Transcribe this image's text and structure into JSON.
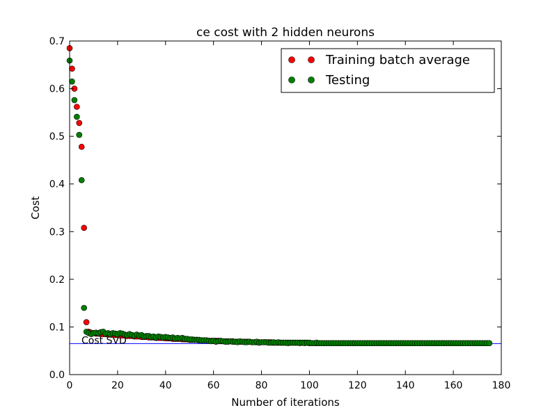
{
  "chart_data": {
    "type": "scatter",
    "title": "ce cost with 2 hidden neurons",
    "xlabel": "Number of iterations",
    "ylabel": "Cost",
    "xlim": [
      0,
      180
    ],
    "ylim": [
      0.0,
      0.7
    ],
    "xticks": [
      0,
      20,
      40,
      60,
      80,
      100,
      120,
      140,
      160,
      180
    ],
    "yticks": [
      0.0,
      0.1,
      0.2,
      0.3,
      0.4,
      0.5,
      0.6,
      0.7
    ],
    "ytick_labels": [
      "0.0",
      "0.1",
      "0.2",
      "0.3",
      "0.4",
      "0.5",
      "0.6",
      "0.7"
    ],
    "grid": false,
    "legend_position": "top-right",
    "colors": {
      "training": "#ff0000",
      "testing": "#008000",
      "svd_line": "#0000ff"
    },
    "series": [
      {
        "name": "Training batch average",
        "x": [
          0,
          1,
          2,
          3,
          4,
          5,
          6,
          7,
          8,
          9,
          10,
          11,
          12,
          13,
          14,
          15,
          16,
          17,
          18,
          19,
          20,
          21,
          22,
          23,
          24,
          25,
          26,
          27,
          28,
          29,
          30,
          31,
          32,
          33,
          34,
          35,
          36,
          37,
          38,
          39,
          40,
          41,
          42,
          43,
          44,
          45,
          46,
          47,
          48,
          49,
          50,
          51,
          52,
          53,
          54,
          55,
          56,
          57,
          58,
          59,
          60,
          61,
          62,
          63,
          64,
          65,
          66,
          67,
          68,
          69,
          70,
          71,
          72,
          73,
          74,
          75,
          76,
          77,
          78,
          79,
          80,
          81,
          82,
          83,
          84,
          85,
          86,
          87,
          88,
          89,
          90,
          91,
          92,
          93,
          94,
          95,
          96,
          97,
          98,
          99,
          100,
          101,
          102,
          103,
          104,
          105,
          106,
          107,
          108,
          109,
          110,
          111,
          112,
          113,
          114,
          115,
          116,
          117,
          118,
          119,
          120,
          121,
          122,
          123,
          124,
          125,
          126,
          127,
          128,
          129,
          130,
          131,
          132,
          133,
          134,
          135,
          136,
          137,
          138,
          139,
          140,
          141,
          142,
          143,
          144,
          145,
          146,
          147,
          148,
          149,
          150,
          151,
          152,
          153,
          154,
          155,
          156,
          157,
          158,
          159,
          160,
          161,
          162,
          163,
          164,
          165,
          166,
          167,
          168,
          169,
          170,
          171,
          172,
          173,
          174,
          175
        ],
        "y": [
          0.685,
          0.642,
          0.6,
          0.562,
          0.528,
          0.478,
          0.308,
          0.11,
          0.09,
          0.088,
          0.087,
          0.086,
          0.086,
          0.085,
          0.085,
          0.085,
          0.084,
          0.084,
          0.083,
          0.083,
          0.083,
          0.082,
          0.082,
          0.082,
          0.081,
          0.081,
          0.081,
          0.08,
          0.08,
          0.08,
          0.079,
          0.079,
          0.079,
          0.078,
          0.078,
          0.078,
          0.077,
          0.077,
          0.077,
          0.077,
          0.076,
          0.076,
          0.076,
          0.075,
          0.075,
          0.075,
          0.075,
          0.074,
          0.074,
          0.074,
          0.073,
          0.073,
          0.073,
          0.073,
          0.072,
          0.072,
          0.072,
          0.072,
          0.071,
          0.071,
          0.071,
          0.071,
          0.071,
          0.07,
          0.07,
          0.07,
          0.07,
          0.07,
          0.07,
          0.069,
          0.069,
          0.069,
          0.069,
          0.069,
          0.069,
          0.069,
          0.068,
          0.068,
          0.068,
          0.068,
          0.068,
          0.068,
          0.068,
          0.068,
          0.068,
          0.067,
          0.067,
          0.067,
          0.067,
          0.067,
          0.067,
          0.067,
          0.067,
          0.067,
          0.067,
          0.067,
          0.067,
          0.067,
          0.067,
          0.067,
          0.066,
          0.066,
          0.066,
          0.066,
          0.066,
          0.066,
          0.066,
          0.066,
          0.066,
          0.066,
          0.066,
          0.066,
          0.066,
          0.066,
          0.066,
          0.066,
          0.066,
          0.066,
          0.066,
          0.066,
          0.066,
          0.066,
          0.066,
          0.066,
          0.066,
          0.066,
          0.066,
          0.066,
          0.066,
          0.066,
          0.066,
          0.066,
          0.066,
          0.066,
          0.066,
          0.066,
          0.066,
          0.066,
          0.066,
          0.066,
          0.066,
          0.066,
          0.066,
          0.066,
          0.066,
          0.066,
          0.066,
          0.066,
          0.066,
          0.066,
          0.066,
          0.066,
          0.066,
          0.066,
          0.066,
          0.066,
          0.066,
          0.066,
          0.066,
          0.066,
          0.066,
          0.066,
          0.066,
          0.066,
          0.066,
          0.066,
          0.066,
          0.066,
          0.066,
          0.066,
          0.066,
          0.066,
          0.066,
          0.066,
          0.066,
          0.066
        ]
      },
      {
        "name": "Testing",
        "x": [
          0,
          1,
          2,
          3,
          4,
          5,
          6,
          7,
          8,
          9,
          10,
          11,
          12,
          13,
          14,
          15,
          16,
          17,
          18,
          19,
          20,
          21,
          22,
          23,
          24,
          25,
          26,
          27,
          28,
          29,
          30,
          31,
          32,
          33,
          34,
          35,
          36,
          37,
          38,
          39,
          40,
          41,
          42,
          43,
          44,
          45,
          46,
          47,
          48,
          49,
          50,
          51,
          52,
          53,
          54,
          55,
          56,
          57,
          58,
          59,
          60,
          61,
          62,
          63,
          64,
          65,
          66,
          67,
          68,
          69,
          70,
          71,
          72,
          73,
          74,
          75,
          76,
          77,
          78,
          79,
          80,
          81,
          82,
          83,
          84,
          85,
          86,
          87,
          88,
          89,
          90,
          91,
          92,
          93,
          94,
          95,
          96,
          97,
          98,
          99,
          100,
          101,
          102,
          103,
          104,
          105,
          106,
          107,
          108,
          109,
          110,
          111,
          112,
          113,
          114,
          115,
          116,
          117,
          118,
          119,
          120,
          121,
          122,
          123,
          124,
          125,
          126,
          127,
          128,
          129,
          130,
          131,
          132,
          133,
          134,
          135,
          136,
          137,
          138,
          139,
          140,
          141,
          142,
          143,
          144,
          145,
          146,
          147,
          148,
          149,
          150,
          151,
          152,
          153,
          154,
          155,
          156,
          157,
          158,
          159,
          160,
          161,
          162,
          163,
          164,
          165,
          166,
          167,
          168,
          169,
          170,
          171,
          172,
          173,
          174,
          175
        ],
        "y": [
          0.659,
          0.615,
          0.576,
          0.541,
          0.503,
          0.408,
          0.14,
          0.09,
          0.087,
          0.085,
          0.087,
          0.088,
          0.087,
          0.089,
          0.09,
          0.086,
          0.087,
          0.085,
          0.087,
          0.086,
          0.085,
          0.087,
          0.086,
          0.084,
          0.083,
          0.085,
          0.083,
          0.082,
          0.084,
          0.082,
          0.083,
          0.08,
          0.081,
          0.081,
          0.079,
          0.08,
          0.078,
          0.08,
          0.079,
          0.078,
          0.079,
          0.078,
          0.077,
          0.078,
          0.076,
          0.077,
          0.076,
          0.077,
          0.075,
          0.075,
          0.074,
          0.074,
          0.073,
          0.073,
          0.073,
          0.072,
          0.072,
          0.072,
          0.071,
          0.07,
          0.071,
          0.069,
          0.07,
          0.071,
          0.07,
          0.069,
          0.069,
          0.07,
          0.069,
          0.069,
          0.068,
          0.07,
          0.069,
          0.068,
          0.068,
          0.069,
          0.068,
          0.068,
          0.069,
          0.067,
          0.068,
          0.068,
          0.068,
          0.067,
          0.067,
          0.068,
          0.067,
          0.068,
          0.067,
          0.067,
          0.067,
          0.066,
          0.067,
          0.067,
          0.067,
          0.067,
          0.066,
          0.067,
          0.066,
          0.067,
          0.067,
          0.066,
          0.066,
          0.067,
          0.066,
          0.066,
          0.066,
          0.066,
          0.066,
          0.066,
          0.066,
          0.066,
          0.066,
          0.066,
          0.066,
          0.066,
          0.066,
          0.066,
          0.066,
          0.066,
          0.066,
          0.066,
          0.066,
          0.066,
          0.066,
          0.066,
          0.066,
          0.066,
          0.066,
          0.066,
          0.066,
          0.066,
          0.066,
          0.066,
          0.066,
          0.066,
          0.066,
          0.066,
          0.066,
          0.066,
          0.066,
          0.066,
          0.066,
          0.066,
          0.066,
          0.066,
          0.066,
          0.066,
          0.066,
          0.066,
          0.066,
          0.066,
          0.066,
          0.066,
          0.066,
          0.066,
          0.066,
          0.066,
          0.066,
          0.066,
          0.066,
          0.066,
          0.066,
          0.066,
          0.066,
          0.066,
          0.066,
          0.066,
          0.066,
          0.066,
          0.066,
          0.066,
          0.066,
          0.066,
          0.066,
          0.066
        ]
      }
    ],
    "reference_line": {
      "label": "Cost SVD",
      "y": 0.065
    }
  }
}
